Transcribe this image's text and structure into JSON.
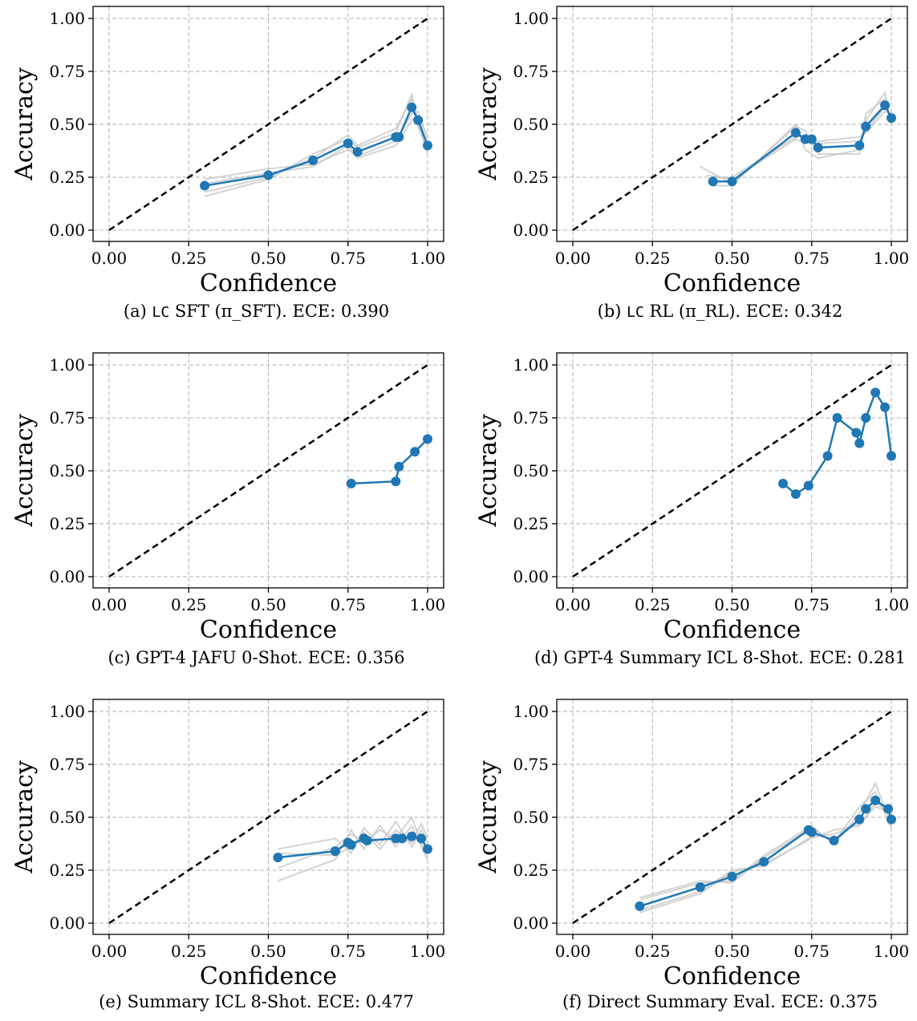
{
  "colors": {
    "main": "#1f77b4",
    "trials": "#c8c8c8",
    "diagonal": "#000000",
    "grid": "#b0b0b0"
  },
  "chart_data": [
    {
      "type": "line",
      "caption_prefix": "(a) ",
      "caption_mono": "LC",
      "caption_text": " SFT (π_SFT). ECE: ",
      "caption_value": "0.390",
      "xlabel": "Confidence",
      "ylabel": "Accuracy",
      "xlim": [
        0,
        1
      ],
      "ylim": [
        0,
        1
      ],
      "xticks": [
        "0.00",
        "0.25",
        "0.50",
        "0.75",
        "1.00"
      ],
      "yticks": [
        "0.00",
        "0.25",
        "0.50",
        "0.75",
        "1.00"
      ],
      "grid": true,
      "series": [
        {
          "x": [
            0.3,
            0.5,
            0.64,
            0.75,
            0.78,
            0.9,
            0.91,
            0.95,
            0.97,
            1.0
          ],
          "y": [
            0.21,
            0.26,
            0.33,
            0.41,
            0.37,
            0.44,
            0.44,
            0.58,
            0.52,
            0.4
          ]
        }
      ],
      "background_trials": [
        {
          "x": [
            0.3,
            0.5,
            0.64,
            0.75,
            0.78,
            0.9,
            0.95,
            0.97,
            1.0
          ],
          "y": [
            0.18,
            0.25,
            0.34,
            0.45,
            0.4,
            0.48,
            0.62,
            0.49,
            0.38
          ]
        },
        {
          "x": [
            0.3,
            0.5,
            0.64,
            0.75,
            0.78,
            0.9,
            0.95,
            0.97,
            1.0
          ],
          "y": [
            0.24,
            0.29,
            0.31,
            0.38,
            0.35,
            0.42,
            0.55,
            0.56,
            0.43
          ]
        },
        {
          "x": [
            0.3,
            0.5,
            0.64,
            0.75,
            0.78,
            0.9,
            0.95,
            0.97,
            1.0
          ],
          "y": [
            0.16,
            0.24,
            0.36,
            0.43,
            0.39,
            0.46,
            0.64,
            0.51,
            0.36
          ]
        },
        {
          "x": [
            0.3,
            0.5,
            0.64,
            0.75,
            0.78,
            0.9,
            0.95,
            0.97,
            1.0
          ],
          "y": [
            0.22,
            0.27,
            0.3,
            0.4,
            0.34,
            0.4,
            0.52,
            0.54,
            0.44
          ]
        }
      ]
    },
    {
      "type": "line",
      "caption_prefix": "(b) ",
      "caption_mono": "LC",
      "caption_text": " RL (π_RL). ECE: ",
      "caption_value": "0.342",
      "xlabel": "Confidence",
      "ylabel": "Accuracy",
      "xlim": [
        0,
        1
      ],
      "ylim": [
        0,
        1
      ],
      "xticks": [
        "0.00",
        "0.25",
        "0.50",
        "0.75",
        "1.00"
      ],
      "yticks": [
        "0.00",
        "0.25",
        "0.50",
        "0.75",
        "1.00"
      ],
      "grid": true,
      "series": [
        {
          "x": [
            0.44,
            0.5,
            0.7,
            0.73,
            0.75,
            0.77,
            0.9,
            0.92,
            0.98,
            1.0
          ],
          "y": [
            0.23,
            0.23,
            0.46,
            0.43,
            0.43,
            0.39,
            0.4,
            0.49,
            0.59,
            0.53
          ]
        }
      ],
      "background_trials": [
        {
          "x": [
            0.4,
            0.5,
            0.7,
            0.73,
            0.77,
            0.9,
            0.92,
            0.98,
            1.0
          ],
          "y": [
            0.3,
            0.22,
            0.49,
            0.47,
            0.36,
            0.36,
            0.52,
            0.65,
            0.5
          ]
        },
        {
          "x": [
            0.42,
            0.5,
            0.7,
            0.73,
            0.77,
            0.9,
            0.92,
            0.98,
            1.0
          ],
          "y": [
            0.26,
            0.24,
            0.43,
            0.41,
            0.42,
            0.44,
            0.46,
            0.56,
            0.55
          ]
        },
        {
          "x": [
            0.44,
            0.5,
            0.7,
            0.73,
            0.77,
            0.9,
            0.92,
            0.98,
            1.0
          ],
          "y": [
            0.21,
            0.21,
            0.5,
            0.38,
            0.34,
            0.38,
            0.55,
            0.62,
            0.51
          ]
        },
        {
          "x": [
            0.44,
            0.5,
            0.7,
            0.73,
            0.77,
            0.9,
            0.92,
            0.98,
            1.0
          ],
          "y": [
            0.25,
            0.25,
            0.44,
            0.45,
            0.41,
            0.42,
            0.47,
            0.58,
            0.54
          ]
        }
      ]
    },
    {
      "type": "line",
      "caption_prefix": "(c) ",
      "caption_mono": "",
      "caption_text": "GPT-4 JAFU 0-Shot. ECE: ",
      "caption_value": "0.356",
      "xlabel": "Confidence",
      "ylabel": "Accuracy",
      "xlim": [
        0,
        1
      ],
      "ylim": [
        0,
        1
      ],
      "xticks": [
        "0.00",
        "0.25",
        "0.50",
        "0.75",
        "1.00"
      ],
      "yticks": [
        "0.00",
        "0.25",
        "0.50",
        "0.75",
        "1.00"
      ],
      "grid": true,
      "series": [
        {
          "x": [
            0.76,
            0.9,
            0.91,
            0.96,
            1.0
          ],
          "y": [
            0.44,
            0.45,
            0.52,
            0.59,
            0.65
          ]
        }
      ],
      "background_trials": []
    },
    {
      "type": "line",
      "caption_prefix": "(d) ",
      "caption_mono": "",
      "caption_text": "GPT-4 Summary ICL 8-Shot. ECE: ",
      "caption_value": "0.281",
      "xlabel": "Confidence",
      "ylabel": "Accuracy",
      "xlim": [
        0,
        1
      ],
      "ylim": [
        0,
        1
      ],
      "xticks": [
        "0.00",
        "0.25",
        "0.50",
        "0.75",
        "1.00"
      ],
      "yticks": [
        "0.00",
        "0.25",
        "0.50",
        "0.75",
        "1.00"
      ],
      "grid": true,
      "series": [
        {
          "x": [
            0.66,
            0.7,
            0.74,
            0.8,
            0.83,
            0.89,
            0.9,
            0.92,
            0.95,
            0.98,
            1.0
          ],
          "y": [
            0.44,
            0.39,
            0.43,
            0.57,
            0.75,
            0.68,
            0.63,
            0.75,
            0.87,
            0.8,
            0.57
          ]
        }
      ],
      "background_trials": []
    },
    {
      "type": "line",
      "caption_prefix": "(e) ",
      "caption_mono": "",
      "caption_text": "Summary ICL 8-Shot. ECE: ",
      "caption_value": "0.477",
      "xlabel": "Confidence",
      "ylabel": "Accuracy",
      "xlim": [
        0,
        1
      ],
      "ylim": [
        0,
        1
      ],
      "xticks": [
        "0.00",
        "0.25",
        "0.50",
        "0.75",
        "1.00"
      ],
      "yticks": [
        "0.00",
        "0.25",
        "0.50",
        "0.75",
        "1.00"
      ],
      "grid": true,
      "series": [
        {
          "x": [
            0.53,
            0.71,
            0.75,
            0.76,
            0.8,
            0.81,
            0.9,
            0.92,
            0.95,
            0.98,
            1.0
          ],
          "y": [
            0.31,
            0.34,
            0.38,
            0.37,
            0.4,
            0.39,
            0.4,
            0.4,
            0.41,
            0.4,
            0.35
          ]
        }
      ],
      "background_trials": [
        {
          "x": [
            0.53,
            0.71,
            0.76,
            0.8,
            0.85,
            0.9,
            0.95,
            0.98,
            1.0
          ],
          "y": [
            0.2,
            0.3,
            0.44,
            0.35,
            0.46,
            0.36,
            0.46,
            0.36,
            0.3
          ]
        },
        {
          "x": [
            0.53,
            0.71,
            0.76,
            0.8,
            0.85,
            0.9,
            0.95,
            0.98,
            1.0
          ],
          "y": [
            0.35,
            0.4,
            0.33,
            0.45,
            0.37,
            0.48,
            0.36,
            0.44,
            0.38
          ]
        },
        {
          "x": [
            0.53,
            0.71,
            0.76,
            0.8,
            0.85,
            0.9,
            0.95,
            0.98,
            1.0
          ],
          "y": [
            0.26,
            0.36,
            0.42,
            0.38,
            0.44,
            0.4,
            0.5,
            0.38,
            0.33
          ]
        },
        {
          "x": [
            0.53,
            0.71,
            0.76,
            0.8,
            0.85,
            0.9,
            0.95,
            0.98,
            1.0
          ],
          "y": [
            0.33,
            0.32,
            0.36,
            0.43,
            0.35,
            0.44,
            0.38,
            0.47,
            0.4
          ]
        }
      ]
    },
    {
      "type": "line",
      "caption_prefix": "(f) ",
      "caption_mono": "",
      "caption_text": "Direct Summary Eval. ECE: ",
      "caption_value": "0.375",
      "xlabel": "Confidence",
      "ylabel": "Accuracy",
      "xlim": [
        0,
        1
      ],
      "ylim": [
        0,
        1
      ],
      "xticks": [
        "0.00",
        "0.25",
        "0.50",
        "0.75",
        "1.00"
      ],
      "yticks": [
        "0.00",
        "0.25",
        "0.50",
        "0.75",
        "1.00"
      ],
      "grid": true,
      "series": [
        {
          "x": [
            0.21,
            0.4,
            0.5,
            0.6,
            0.74,
            0.75,
            0.82,
            0.9,
            0.92,
            0.95,
            0.99,
            1.0
          ],
          "y": [
            0.08,
            0.17,
            0.22,
            0.29,
            0.44,
            0.43,
            0.39,
            0.49,
            0.54,
            0.58,
            0.54,
            0.49
          ]
        }
      ],
      "background_trials": [
        {
          "x": [
            0.21,
            0.4,
            0.5,
            0.6,
            0.75,
            0.82,
            0.9,
            0.95,
            1.0
          ],
          "y": [
            0.11,
            0.19,
            0.2,
            0.32,
            0.46,
            0.37,
            0.52,
            0.66,
            0.47
          ]
        },
        {
          "x": [
            0.21,
            0.4,
            0.5,
            0.6,
            0.75,
            0.82,
            0.9,
            0.95,
            1.0
          ],
          "y": [
            0.06,
            0.15,
            0.25,
            0.27,
            0.41,
            0.42,
            0.47,
            0.55,
            0.52
          ]
        },
        {
          "x": [
            0.21,
            0.4,
            0.5,
            0.6,
            0.75,
            0.82,
            0.9,
            0.95,
            1.0
          ],
          "y": [
            0.12,
            0.2,
            0.19,
            0.31,
            0.45,
            0.38,
            0.55,
            0.62,
            0.45
          ]
        },
        {
          "x": [
            0.21,
            0.4,
            0.5,
            0.6,
            0.75,
            0.82,
            0.9,
            0.95,
            1.0
          ],
          "y": [
            0.05,
            0.14,
            0.24,
            0.28,
            0.4,
            0.44,
            0.46,
            0.57,
            0.51
          ]
        }
      ]
    }
  ]
}
